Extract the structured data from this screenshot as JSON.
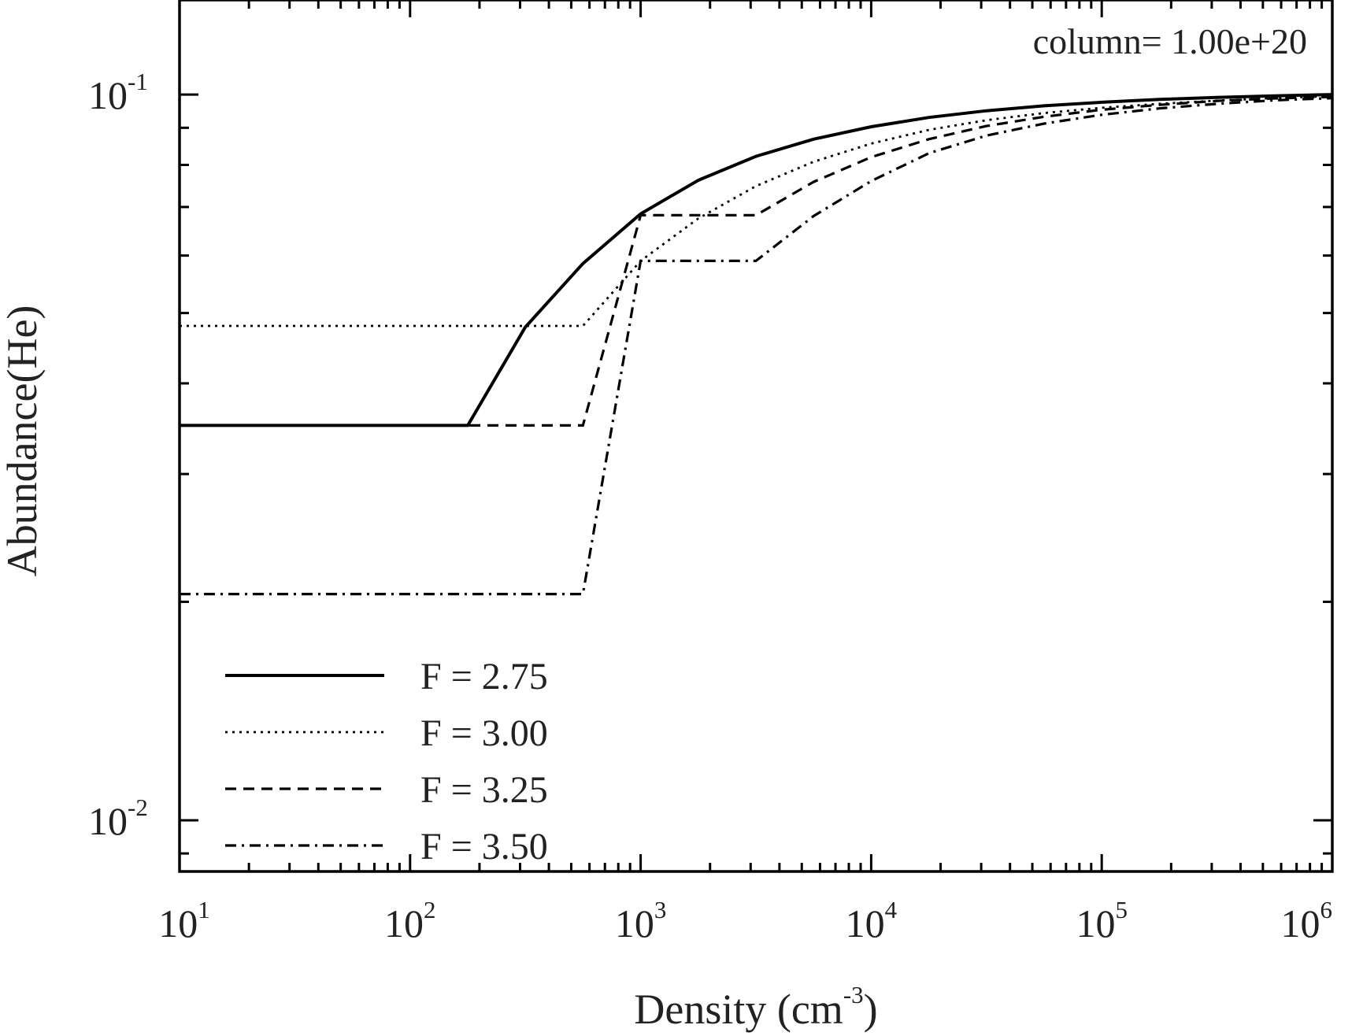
{
  "chart_data": {
    "type": "line",
    "xlabel": {
      "text": "Density (cm",
      "sup": "-3",
      "tail": ")"
    },
    "ylabel": "Abundance(He)",
    "annotation": "column= 1.00e+20",
    "xscale": "log",
    "yscale": "log",
    "xlim": [
      10,
      1000000
    ],
    "ylim": [
      0.0085,
      0.135
    ],
    "x_ticks": [
      {
        "base": "10",
        "exp": "1",
        "value": 10
      },
      {
        "base": "10",
        "exp": "2",
        "value": 100
      },
      {
        "base": "10",
        "exp": "3",
        "value": 1000
      },
      {
        "base": "10",
        "exp": "4",
        "value": 10000
      },
      {
        "base": "10",
        "exp": "5",
        "value": 100000
      },
      {
        "base": "10",
        "exp": "6",
        "value": 1000000
      }
    ],
    "y_ticks": [
      {
        "base": "10",
        "exp": "-2",
        "value": 0.01
      },
      {
        "base": "10",
        "exp": "-1",
        "value": 0.1
      }
    ],
    "legend_position": "bottom-left",
    "series": [
      {
        "name": "F = 2.75",
        "style": "solid",
        "points": [
          [
            10,
            0.035
          ],
          [
            178,
            0.035
          ],
          [
            316,
            0.0478
          ],
          [
            562,
            0.0585
          ],
          [
            1000,
            0.0685
          ],
          [
            1778,
            0.0762
          ],
          [
            3162,
            0.0822
          ],
          [
            5623,
            0.0868
          ],
          [
            10000,
            0.0903
          ],
          [
            17783,
            0.093
          ],
          [
            31623,
            0.095
          ],
          [
            56234,
            0.0965
          ],
          [
            100000,
            0.0976
          ],
          [
            177828,
            0.0985
          ],
          [
            316228,
            0.0991
          ],
          [
            562341,
            0.0996
          ],
          [
            1000000,
            0.1
          ]
        ]
      },
      {
        "name": "F = 3.00",
        "style": "dotted",
        "points": [
          [
            10,
            0.048
          ],
          [
            562,
            0.048
          ],
          [
            1000,
            0.059
          ],
          [
            1778,
            0.0675
          ],
          [
            3162,
            0.0748
          ],
          [
            5623,
            0.0808
          ],
          [
            10000,
            0.0856
          ],
          [
            17783,
            0.0894
          ],
          [
            31623,
            0.0922
          ],
          [
            56234,
            0.0943
          ],
          [
            100000,
            0.0959
          ],
          [
            177828,
            0.0971
          ],
          [
            316228,
            0.0981
          ],
          [
            562341,
            0.0989
          ],
          [
            1000000,
            0.0995
          ]
        ]
      },
      {
        "name": "F = 3.25",
        "style": "dashed",
        "points": [
          [
            10,
            0.035
          ],
          [
            562,
            0.035
          ],
          [
            1000,
            0.0682
          ],
          [
            3162,
            0.0682
          ],
          [
            5623,
            0.0758
          ],
          [
            10000,
            0.082
          ],
          [
            17783,
            0.0868
          ],
          [
            31623,
            0.0905
          ],
          [
            56234,
            0.0932
          ],
          [
            100000,
            0.0953
          ],
          [
            177828,
            0.0968
          ],
          [
            316228,
            0.098
          ],
          [
            562341,
            0.0988
          ],
          [
            1000000,
            0.0993
          ]
        ]
      },
      {
        "name": "F = 3.50",
        "style": "dashdot",
        "points": [
          [
            10,
            0.0205
          ],
          [
            562,
            0.0205
          ],
          [
            1000,
            0.059
          ],
          [
            3162,
            0.059
          ],
          [
            5623,
            0.068
          ],
          [
            10000,
            0.076
          ],
          [
            17783,
            0.083
          ],
          [
            31623,
            0.0878
          ],
          [
            56234,
            0.0912
          ],
          [
            100000,
            0.0938
          ],
          [
            177828,
            0.0957
          ],
          [
            316228,
            0.0971
          ],
          [
            562341,
            0.0982
          ],
          [
            1000000,
            0.0989
          ]
        ]
      }
    ]
  }
}
